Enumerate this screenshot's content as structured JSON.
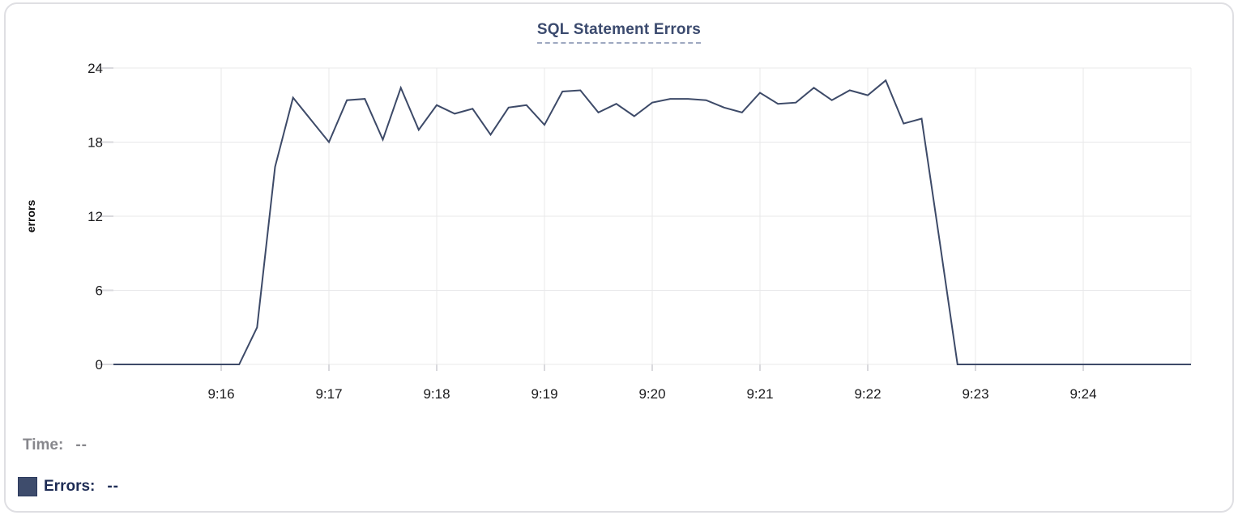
{
  "legend": {
    "time_label": "Time:",
    "time_value": "--",
    "errors_label": "Errors:",
    "errors_value": "--",
    "errors_swatch_color": "#3e4c6c"
  },
  "chart_data": {
    "type": "line",
    "title": "SQL Statement Errors",
    "xlabel": "",
    "ylabel": "errors",
    "series_name": "Errors",
    "line_color": "#3d4a68",
    "grid": true,
    "legend_position": "bottom-left",
    "ylim": [
      0,
      24
    ],
    "y_ticks": [
      0,
      6,
      12,
      18,
      24
    ],
    "x_ticks": [
      "9:16",
      "9:17",
      "9:18",
      "9:19",
      "9:20",
      "9:21",
      "9:22",
      "9:23",
      "9:24"
    ],
    "x_start": "9:15:00",
    "x_end": "9:25:00",
    "times": [
      "9:15:00",
      "9:15:10",
      "9:15:20",
      "9:15:30",
      "9:15:40",
      "9:15:50",
      "9:16:00",
      "9:16:10",
      "9:16:20",
      "9:16:30",
      "9:16:40",
      "9:16:50",
      "9:17:00",
      "9:17:10",
      "9:17:20",
      "9:17:30",
      "9:17:40",
      "9:17:50",
      "9:18:00",
      "9:18:10",
      "9:18:20",
      "9:18:30",
      "9:18:40",
      "9:18:50",
      "9:19:00",
      "9:19:10",
      "9:19:20",
      "9:19:30",
      "9:19:40",
      "9:19:50",
      "9:20:00",
      "9:20:10",
      "9:20:20",
      "9:20:30",
      "9:20:40",
      "9:20:50",
      "9:21:00",
      "9:21:10",
      "9:21:20",
      "9:21:30",
      "9:21:40",
      "9:21:50",
      "9:22:00",
      "9:22:10",
      "9:22:20",
      "9:22:30",
      "9:22:40",
      "9:22:50",
      "9:23:00",
      "9:23:10",
      "9:23:20",
      "9:23:30",
      "9:23:40",
      "9:23:50",
      "9:24:00",
      "9:24:10",
      "9:24:20",
      "9:24:30",
      "9:24:40",
      "9:24:50",
      "9:25:00"
    ],
    "values": [
      0,
      0,
      0,
      0,
      0,
      0,
      0,
      0,
      3,
      16,
      21.6,
      19.8,
      18,
      21.4,
      21.5,
      18.2,
      22.4,
      19,
      21,
      20.3,
      20.7,
      18.6,
      20.8,
      21,
      19.4,
      22.1,
      22.2,
      20.4,
      21.1,
      20.1,
      21.2,
      21.5,
      21.5,
      21.4,
      20.8,
      20.4,
      22,
      21.1,
      21.2,
      22.4,
      21.4,
      22.2,
      21.8,
      23,
      19.5,
      19.9,
      10,
      0,
      0,
      0,
      0,
      0,
      0,
      0,
      0,
      0,
      0,
      0,
      0,
      0,
      0
    ]
  }
}
